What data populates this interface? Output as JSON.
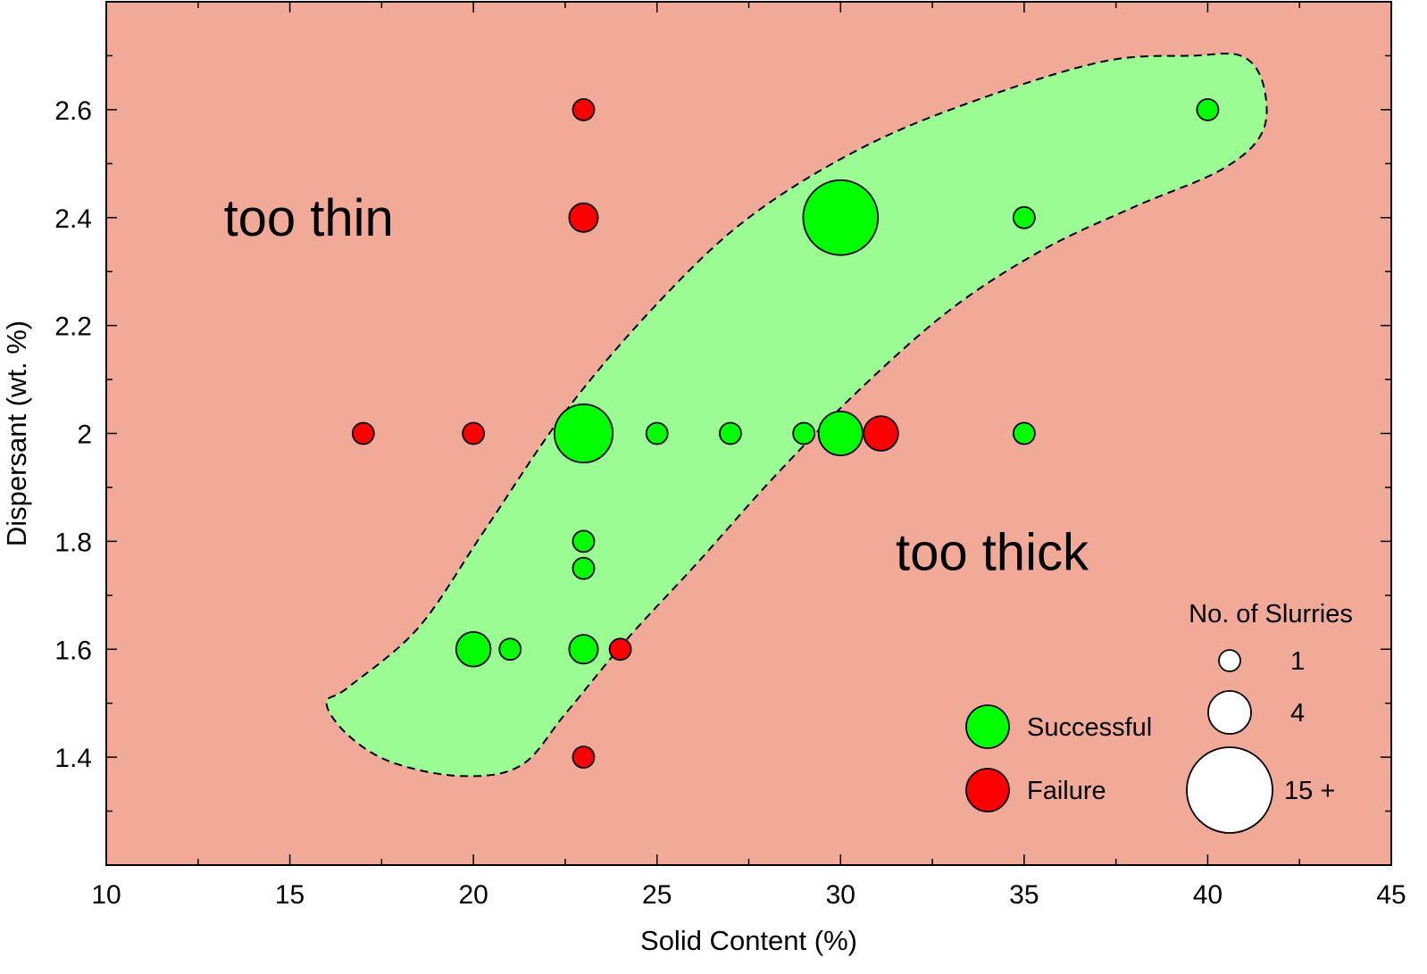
{
  "chart_data": {
    "type": "scatter",
    "subtype": "bubble",
    "xlabel": "Solid Content (%)",
    "ylabel": "Dispersant (wt. %)",
    "xlim": [
      10,
      45
    ],
    "ylim": [
      1.2,
      2.8
    ],
    "xticks": [
      10,
      15,
      20,
      25,
      30,
      35,
      40,
      45
    ],
    "xtick_labels": [
      "10",
      "15",
      "20",
      "25",
      "30",
      "35",
      "40",
      "45"
    ],
    "yticks": [
      1.4,
      1.6,
      1.8,
      2.0,
      2.2,
      2.4,
      2.6
    ],
    "ytick_labels": [
      "1.4",
      "1.6",
      "1.8",
      "2",
      "2.2",
      "2.4",
      "2.6"
    ],
    "grid": false,
    "colors": {
      "background": "#f2aa98",
      "region": "#9cfc94",
      "successful": "#00ff00",
      "failure": "#ff0000",
      "outline": "#000000"
    },
    "region": {
      "style": "dashed",
      "outline": [
        [
          16.0,
          1.5
        ],
        [
          16.6,
          1.44
        ],
        [
          17.8,
          1.39
        ],
        [
          19.7,
          1.365
        ],
        [
          21.3,
          1.385
        ],
        [
          22.5,
          1.48
        ],
        [
          24.2,
          1.62
        ],
        [
          26.1,
          1.76
        ],
        [
          28.2,
          1.92
        ],
        [
          30.5,
          2.08
        ],
        [
          33.0,
          2.23
        ],
        [
          35.5,
          2.34
        ],
        [
          38.0,
          2.42
        ],
        [
          40.4,
          2.49
        ],
        [
          41.5,
          2.56
        ],
        [
          41.5,
          2.65
        ],
        [
          40.9,
          2.7
        ],
        [
          39.6,
          2.7
        ],
        [
          37.2,
          2.69
        ],
        [
          33.8,
          2.62
        ],
        [
          30.6,
          2.53
        ],
        [
          27.5,
          2.4
        ],
        [
          25.0,
          2.24
        ],
        [
          22.5,
          2.04
        ],
        [
          20.3,
          1.82
        ],
        [
          18.5,
          1.64
        ],
        [
          16.6,
          1.53
        ],
        [
          16.0,
          1.5
        ]
      ]
    },
    "series": [
      {
        "name": "Successful",
        "points": [
          {
            "x": 30,
            "y": 2.4,
            "count": 15
          },
          {
            "x": 40,
            "y": 2.6,
            "count": 1
          },
          {
            "x": 35,
            "y": 2.4,
            "count": 1
          },
          {
            "x": 23,
            "y": 2.0,
            "count": 9
          },
          {
            "x": 30,
            "y": 2.0,
            "count": 5
          },
          {
            "x": 25,
            "y": 2.0,
            "count": 1
          },
          {
            "x": 27,
            "y": 2.0,
            "count": 1
          },
          {
            "x": 29,
            "y": 2.0,
            "count": 1
          },
          {
            "x": 35,
            "y": 2.0,
            "count": 1
          },
          {
            "x": 23,
            "y": 1.8,
            "count": 1
          },
          {
            "x": 23,
            "y": 1.75,
            "count": 1
          },
          {
            "x": 20,
            "y": 1.6,
            "count": 3
          },
          {
            "x": 23,
            "y": 1.6,
            "count": 2
          },
          {
            "x": 21,
            "y": 1.6,
            "count": 1
          }
        ]
      },
      {
        "name": "Failure",
        "points": [
          {
            "x": 23,
            "y": 2.6,
            "count": 1
          },
          {
            "x": 23,
            "y": 2.4,
            "count": 2
          },
          {
            "x": 17,
            "y": 2.0,
            "count": 1
          },
          {
            "x": 20,
            "y": 2.0,
            "count": 1
          },
          {
            "x": 31.1,
            "y": 2.0,
            "count": 3
          },
          {
            "x": 24,
            "y": 1.6,
            "count": 1
          },
          {
            "x": 23,
            "y": 1.4,
            "count": 1
          }
        ]
      }
    ],
    "annotations": [
      {
        "text": "too thin",
        "x": 13.2,
        "y": 2.4
      },
      {
        "text": "too thick",
        "x": 31.5,
        "y": 1.78
      }
    ],
    "legend": {
      "placement": "bottom-right",
      "status_entries": [
        {
          "label": "Successful",
          "color": "#00ff00"
        },
        {
          "label": "Failure",
          "color": "#ff0000"
        }
      ],
      "size_title": "No. of Slurries",
      "size_entries": [
        {
          "label": "1",
          "count": 1
        },
        {
          "label": "4",
          "count": 4
        },
        {
          "label": "15 +",
          "count": 15
        }
      ]
    }
  }
}
